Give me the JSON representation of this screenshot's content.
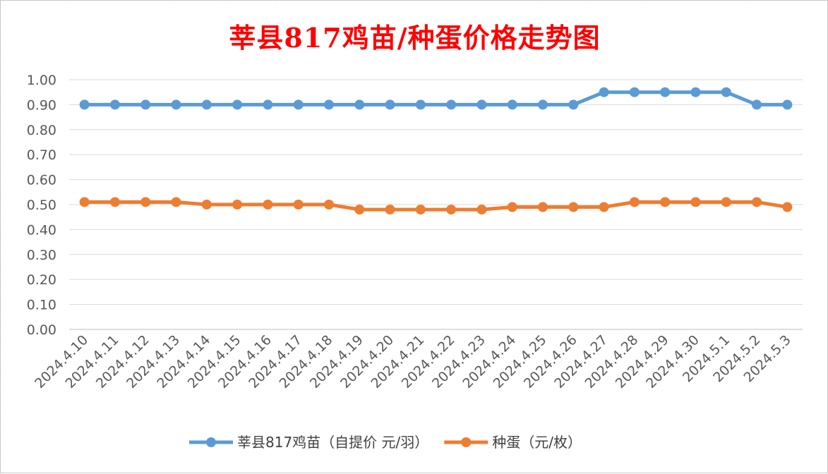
{
  "chart_data": {
    "type": "line",
    "title": "莘县817鸡苗/种蛋价格走势图",
    "categories": [
      "2024.4.10",
      "2024.4.11",
      "2024.4.12",
      "2024.4.13",
      "2024.4.14",
      "2024.4.15",
      "2024.4.16",
      "2024.4.17",
      "2024.4.18",
      "2024.4.19",
      "2024.4.20",
      "2024.4.21",
      "2024.4.22",
      "2024.4.23",
      "2024.4.24",
      "2024.4.25",
      "2024.4.26",
      "2024.4.27",
      "2024.4.28",
      "2024.4.29",
      "2024.4.30",
      "2024.5.1",
      "2024.5.2",
      "2024.5.3"
    ],
    "series": [
      {
        "name": "莘县817鸡苗（自提价 元/羽）",
        "color": "#5b9bd5",
        "values": [
          0.9,
          0.9,
          0.9,
          0.9,
          0.9,
          0.9,
          0.9,
          0.9,
          0.9,
          0.9,
          0.9,
          0.9,
          0.9,
          0.9,
          0.9,
          0.9,
          0.9,
          0.95,
          0.95,
          0.95,
          0.95,
          0.95,
          0.9,
          0.9
        ]
      },
      {
        "name": "种蛋（元/枚）",
        "color": "#ed7d31",
        "values": [
          0.51,
          0.51,
          0.51,
          0.51,
          0.5,
          0.5,
          0.5,
          0.5,
          0.5,
          0.48,
          0.48,
          0.48,
          0.48,
          0.48,
          0.49,
          0.49,
          0.49,
          0.49,
          0.51,
          0.51,
          0.51,
          0.51,
          0.51,
          0.49
        ]
      }
    ],
    "ylim": [
      0,
      1.0
    ],
    "yticks": [
      "0.00",
      "0.10",
      "0.20",
      "0.30",
      "0.40",
      "0.50",
      "0.60",
      "0.70",
      "0.80",
      "0.90",
      "1.00"
    ],
    "xlabel": "",
    "ylabel": "",
    "grid": true,
    "legend": "bottom"
  }
}
